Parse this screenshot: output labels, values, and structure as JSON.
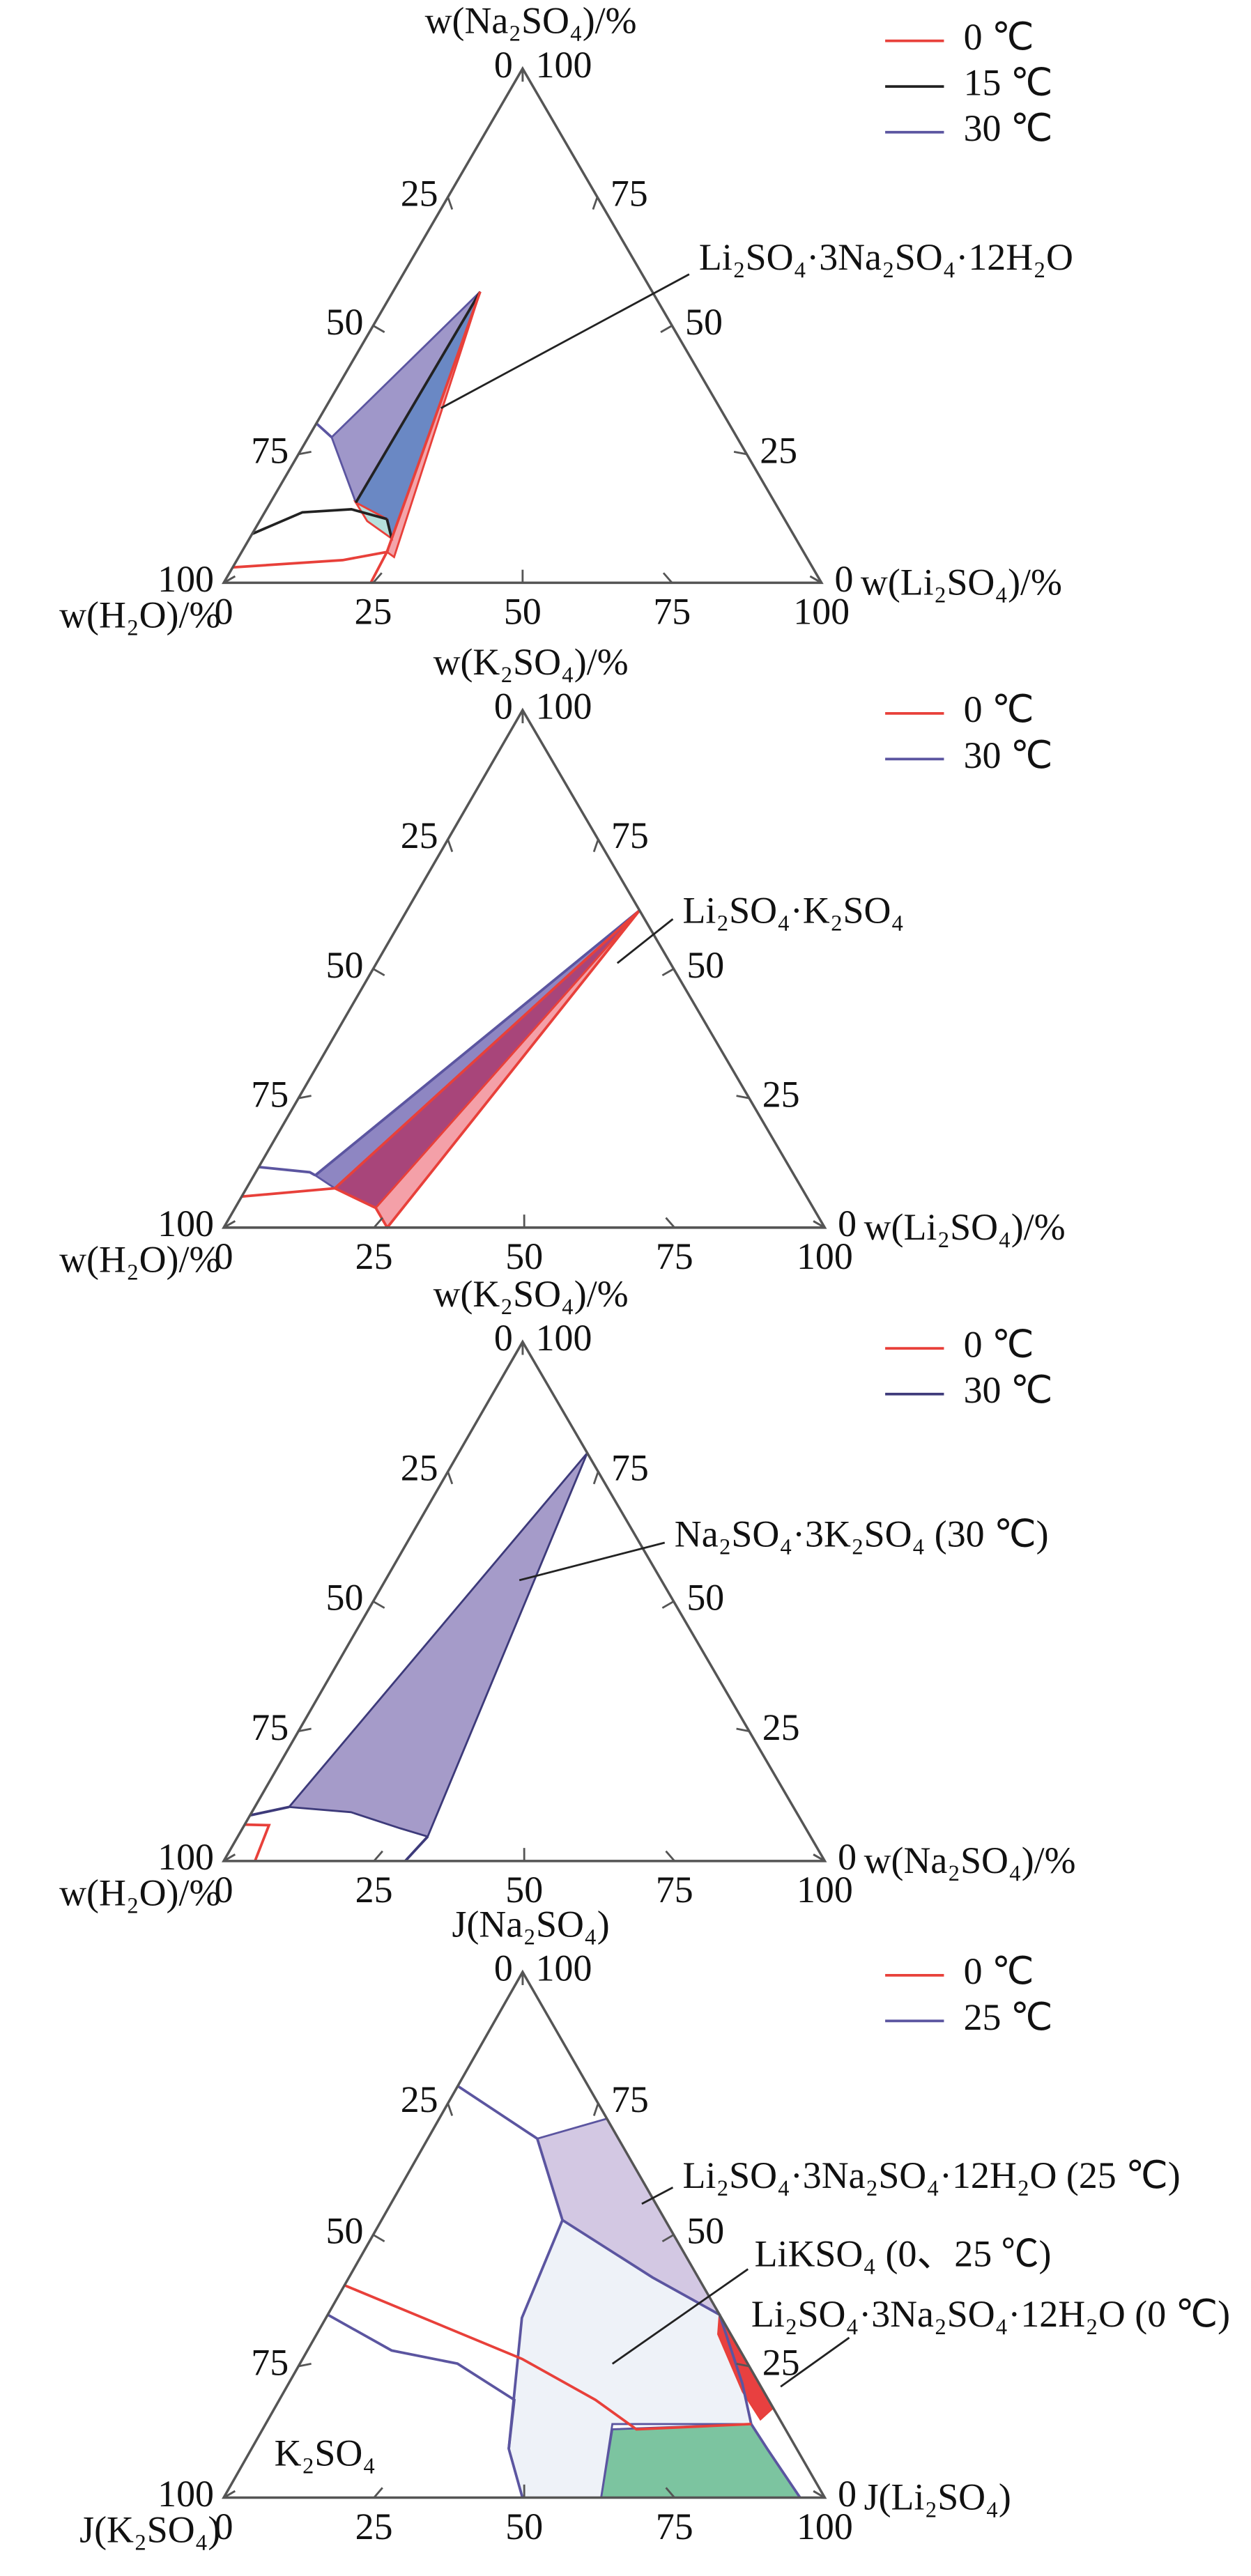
{
  "chart_data": [
    {
      "type": "ternary",
      "top_axis_label": "w(Na₂SO₄)/%",
      "bottom_axis_label": "w(Li₂SO₄)/%",
      "left_axis_label": "w(H₂O)/%",
      "lim": [
        0,
        100
      ],
      "left_ticks": [
        0,
        25,
        50,
        75,
        100
      ],
      "right_ticks": [
        100,
        75,
        50,
        25,
        0
      ],
      "bottom_ticks": [
        0,
        25,
        50,
        75,
        100
      ],
      "annotations": [
        "Li₂SO₄·3Na₂SO₄·12H₂O"
      ],
      "series": [
        {
          "name": "0 ℃",
          "color": "#e8403a",
          "regions": [
            {
              "fill": "#f4a4aa",
              "points": [
                [
                  14.6,
                  56.6
                ],
                [
                  24.3,
                  6.0
                ],
                [
                  26.0,
                  5.0
                ]
              ]
            },
            {
              "fill": "#b6e0dc",
              "points": [
                [
                  14.3,
                  15.6
                ],
                [
                  21.1,
                  12.4
                ],
                [
                  23.8,
                  8.6
                ],
                [
                  18.0,
                  12.0
                ]
              ]
            }
          ],
          "lines": [
            [
              [
                0,
                3
              ],
              [
                17.7,
                4.4
              ],
              [
                24.3,
                6.0
              ],
              [
                24.6,
                0
              ]
            ],
            [
              [
                14.6,
                56.6
              ],
              [
                24.3,
                6.0
              ]
            ]
          ]
        },
        {
          "name": "15 ℃",
          "color": "#222222",
          "regions": [
            {
              "fill": "#6a88c4",
              "points": [
                [
                  14.6,
                  56.6
                ],
                [
                  14.3,
                  15.6
                ],
                [
                  23.8,
                  8.6
                ]
              ]
            }
          ],
          "lines": [
            [
              [
                0,
                9.5
              ],
              [
                6.3,
                13.7
              ],
              [
                14.2,
                14.3
              ],
              [
                21.1,
                12.4
              ]
            ],
            [
              [
                14.6,
                56.6
              ],
              [
                14.3,
                15.6
              ]
            ],
            [
              [
                21.1,
                12.4
              ],
              [
                23.8,
                8.6
              ]
            ]
          ]
        },
        {
          "name": "30 ℃",
          "color": "#5b55a0",
          "regions": [
            {
              "fill": "#9f97c9",
              "points": [
                [
                  14.6,
                  56.6
                ],
                [
                  3.9,
                  28.3
                ],
                [
                  14.3,
                  15.6
                ],
                [
                  21.1,
                  12.4
                ]
              ]
            }
          ],
          "lines": [
            [
              [
                0,
                31
              ],
              [
                3.9,
                28.3
              ]
            ]
          ]
        }
      ]
    },
    {
      "type": "ternary",
      "top_axis_label": "w(K₂SO₄)/%",
      "bottom_axis_label": "w(Li₂SO₄)/%",
      "left_axis_label": "w(H₂O)/%",
      "lim": [
        0,
        100
      ],
      "left_ticks": [
        0,
        25,
        50,
        75,
        100
      ],
      "right_ticks": [
        100,
        75,
        50,
        25,
        0
      ],
      "bottom_ticks": [
        0,
        25,
        50,
        75,
        100
      ],
      "annotations": [
        "Li₂SO₄·K₂SO₄"
      ],
      "series": [
        {
          "name": "0 ℃",
          "color": "#e8403a",
          "regions": [
            {
              "fill": "#a8457a",
              "points": [
                [
                  38.7,
                  61.3
                ],
                [
                  14.7,
                  7.6
                ],
                [
                  23.4,
                  3.8
                ]
              ]
            },
            {
              "fill": "#f4a0a8",
              "points": [
                [
                  38.7,
                  61.3
                ],
                [
                  23.4,
                  3.8
                ],
                [
                  27.2,
                  0
                ]
              ]
            }
          ],
          "lines": [
            [
              [
                0,
                6
              ],
              [
                14.7,
                7.6
              ],
              [
                23.4,
                3.8
              ],
              [
                27.2,
                0
              ]
            ],
            [
              [
                38.7,
                61.3
              ],
              [
                27.2,
                0
              ]
            ],
            [
              [
                38.7,
                61.3
              ],
              [
                14.7,
                7.6
              ]
            ]
          ]
        },
        {
          "name": "30 ℃",
          "color": "#5b55a0",
          "regions": [
            {
              "fill": "#8e86c2",
              "points": [
                [
                  38.7,
                  61.3
                ],
                [
                  10.2,
                  10.1
                ],
                [
                  14.7,
                  7.6
                ]
              ]
            }
          ],
          "lines": [
            [
              [
                0,
                11.7
              ],
              [
                9.0,
                10.7
              ],
              [
                10.2,
                10.1
              ]
            ],
            [
              [
                38.7,
                61.3
              ],
              [
                10.2,
                10.1
              ]
            ]
          ]
        }
      ]
    },
    {
      "type": "ternary",
      "top_axis_label": "w(K₂SO₄)/%",
      "bottom_axis_label": "w(Na₂SO₄)/%",
      "left_axis_label": "w(H₂O)/%",
      "lim": [
        0,
        100
      ],
      "left_ticks": [
        0,
        25,
        50,
        75,
        100
      ],
      "right_ticks": [
        100,
        75,
        50,
        25,
        0
      ],
      "bottom_ticks": [
        0,
        25,
        50,
        75,
        100
      ],
      "annotations": [
        "Na₂SO₄·3K₂SO₄ (30 ℃)"
      ],
      "series": [
        {
          "name": "0 ℃",
          "color": "#e8403a",
          "regions": [],
          "lines": [
            [
              [
                0,
                7
              ],
              [
                4.1,
                6.9
              ],
              [
                5.2,
                0
              ]
            ]
          ]
        },
        {
          "name": "30 ℃",
          "color": "#3d3a7a",
          "regions": [
            {
              "fill": "#a59bc9",
              "points": [
                [
                  21.4,
                  78.6
                ],
                [
                  5.7,
                  10.4
                ],
                [
                  16.5,
                  9.4
                ],
                [
                  26.2,
                  6.3
                ],
                [
                  31.6,
                  4.7
                ]
              ]
            }
          ],
          "lines": [
            [
              [
                0,
                8.8
              ],
              [
                5.7,
                10.4
              ]
            ],
            [
              [
                31.6,
                4.7
              ],
              [
                30.2,
                0
              ]
            ]
          ]
        }
      ]
    },
    {
      "type": "ternary",
      "top_axis_label": "J(Na₂SO₄)",
      "bottom_axis_label": "J(Li₂SO₄)",
      "left_axis_label": "J(K₂SO₄)",
      "lim": [
        0,
        100
      ],
      "left_ticks": [
        0,
        25,
        50,
        75,
        100
      ],
      "right_ticks": [
        100,
        75,
        50,
        25,
        0
      ],
      "bottom_ticks": [
        0,
        25,
        50,
        75,
        100
      ],
      "annotations": [
        "K₂SO₄",
        "Li₂SO₄·3Na₂SO₄·12H₂O (25 ℃)",
        "LiKSO₄ (0、25 ℃)",
        "Li₂SO₄·3Na₂SO₄·12H₂O (0 ℃)"
      ],
      "series": [
        {
          "name": "0 ℃",
          "color": "#e8403a",
          "regions": [
            {
              "fill": "#e84040",
              "points": [
                [
                  65.2,
                  34.8
                ],
                [
                  82.9,
                  17.1
                ],
                [
                  81.9,
                  14.9
                ],
                [
                  76.3,
                  20.2
                ],
                [
                  66.8,
                  31.1
                ]
              ]
            }
          ],
          "lines": [
            [
              [
                0,
                40.4
              ],
              [
                36.5,
                26.4
              ],
              [
                52.6,
                18.6
              ],
              [
                62.2,
                13.0
              ],
              [
                80.8,
                14.0
              ]
            ]
          ]
        },
        {
          "name": "25 ℃",
          "color": "#5b55a0",
          "regions": [
            {
              "fill": "#d3c8e3",
              "points": [
                [
                  18.2,
                  68.3
                ],
                [
                  27.9,
                  72.1
                ],
                [
                  65.2,
                  34.8
                ],
                [
                  50.5,
                  41.9
                ],
                [
                  30.1,
                  52.8
                ]
              ]
            },
            {
              "fill": "#eef2f8",
              "points": [
                [
                  30.1,
                  52.8
                ],
                [
                  50.5,
                  41.9
                ],
                [
                  65.2,
                  34.8
                ],
                [
                  75.5,
                  21.7
                ],
                [
                  80.8,
                  14.0
                ],
                [
                  57.7,
                  14.0
                ],
                [
                  62.8,
                  0
                ],
                [
                  49.7,
                  0
                ],
                [
                  42.8,
                  9.3
                ],
                [
                  32.6,
                  34.2
                ]
              ]
            },
            {
              "fill": "#7cc4a0",
              "points": [
                [
                  62.8,
                  0
                ],
                [
                  58.2,
                  13.0
                ],
                [
                  80.8,
                  14.0
                ],
                [
                  85.8,
                  9.3
                ],
                [
                  95.9,
                  0
                ]
              ]
            }
          ],
          "lines": [
            [
              [
                0,
                78.3
              ],
              [
                18.2,
                68.3
              ],
              [
                30.1,
                52.8
              ],
              [
                32.6,
                34.2
              ],
              [
                42.8,
                9.3
              ],
              [
                49.7,
                0
              ]
            ],
            [
              [
                0,
                34.8
              ],
              [
                14.0,
                28.0
              ],
              [
                26.2,
                25.5
              ],
              [
                39.1,
                18.6
              ],
              [
                42.8,
                9.3
              ]
            ],
            [
              [
                30.1,
                52.8
              ],
              [
                50.5,
                41.9
              ],
              [
                65.2,
                34.8
              ],
              [
                75.5,
                21.7
              ],
              [
                80.8,
                14.0
              ],
              [
                85.8,
                9.3
              ],
              [
                95.9,
                0
              ]
            ]
          ]
        }
      ]
    }
  ]
}
